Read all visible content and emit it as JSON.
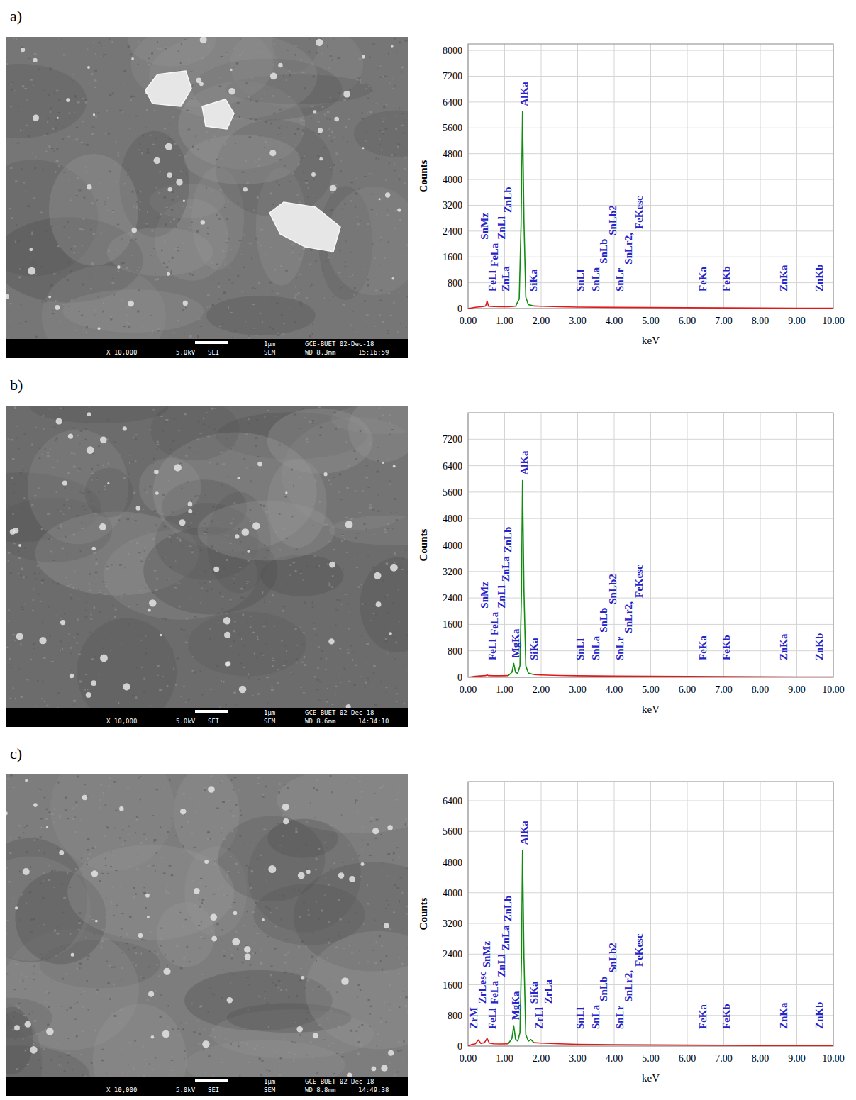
{
  "panels": [
    {
      "label": "a)",
      "sem": {
        "scale": "1μm",
        "lab_date": "GCE-BUET 02-Dec-18",
        "magnification": "X 10,000",
        "voltage": "5.0kV",
        "signal": "SEI",
        "instrument": "SEM",
        "working_distance": "WD 8.3mm",
        "time": "15:16:59"
      }
    },
    {
      "label": "b)",
      "sem": {
        "scale": "1μm",
        "lab_date": "GCE-BUET 02-Dec-18",
        "magnification": "X 10,000",
        "voltage": "5.0kV",
        "signal": "SEI",
        "instrument": "SEM",
        "working_distance": "WD 8.6mm",
        "time": "14:34:10"
      }
    },
    {
      "label": "c)",
      "sem": {
        "scale": "1μm",
        "lab_date": "GCE-BUET 02-Dec-18",
        "magnification": "X 10,000",
        "voltage": "5.0kV",
        "signal": "SEI",
        "instrument": "SEM",
        "working_distance": "WD 8.8mm",
        "time": "14:49:38"
      }
    }
  ],
  "chart_data": [
    {
      "type": "line",
      "x_label": "keV",
      "y_label": "Counts",
      "xlim": [
        0,
        10
      ],
      "ylim": [
        0,
        8200
      ],
      "xticks": [
        {
          "value": 0,
          "label": "0.00"
        },
        {
          "value": 1,
          "label": "1.00"
        },
        {
          "value": 2,
          "label": "2.00"
        },
        {
          "value": 3,
          "label": "3.00"
        },
        {
          "value": 4,
          "label": "4.00"
        },
        {
          "value": 5,
          "label": "5.00"
        },
        {
          "value": 6,
          "label": "6.00"
        },
        {
          "value": 7,
          "label": "7.00"
        },
        {
          "value": 8,
          "label": "8.00"
        },
        {
          "value": 9,
          "label": "9.00"
        },
        {
          "value": 10,
          "label": "10.00"
        }
      ],
      "yticks": [
        0,
        800,
        1600,
        2400,
        3200,
        4000,
        4800,
        5600,
        6400,
        7200,
        8000
      ],
      "grid": true,
      "series": [
        {
          "color": "#e01818",
          "x": [
            0,
            0.2,
            0.4,
            0.48,
            0.52,
            0.56,
            0.7,
            0.9,
            1.1,
            1.3,
            1.5,
            1.8,
            2.0,
            2.5,
            3,
            4,
            5,
            6,
            7,
            8,
            9,
            10
          ],
          "values": [
            0,
            40,
            60,
            80,
            230,
            70,
            60,
            55,
            55,
            70,
            null,
            80,
            70,
            55,
            45,
            35,
            30,
            25,
            20,
            15,
            10,
            8
          ]
        },
        {
          "color": "#118c11",
          "x": [
            1.3,
            1.4,
            1.45,
            1.49,
            1.53,
            1.58,
            1.65,
            1.8
          ],
          "values": [
            70,
            300,
            2600,
            6100,
            2700,
            350,
            120,
            80
          ]
        }
      ],
      "annotations": [
        {
          "text": "FeLl",
          "x": 0.66
        },
        {
          "text": "FeLa",
          "x": 0.72
        },
        {
          "text": "ZnLl",
          "x": 0.92
        },
        {
          "text": "SnMz",
          "x": 0.45
        },
        {
          "text": "ZnLa",
          "x": 1.03
        },
        {
          "text": "ZnLb",
          "x": 1.09
        },
        {
          "text": "AlKa",
          "x": 1.54
        },
        {
          "text": "SiKa",
          "x": 1.78
        },
        {
          "text": "SnLl",
          "x": 3.07
        },
        {
          "text": "SnLa",
          "x": 3.5
        },
        {
          "text": "SnLb",
          "x": 3.71
        },
        {
          "text": "SnLr",
          "x": 4.16
        },
        {
          "text": "SnLb2",
          "x": 3.96
        },
        {
          "text": "SnLr2,",
          "x": 4.39
        },
        {
          "text": "FeKesc",
          "x": 4.67
        },
        {
          "text": "FeKa",
          "x": 6.43
        },
        {
          "text": "FeKb",
          "x": 7.07
        },
        {
          "text": "ZnKa",
          "x": 8.65
        },
        {
          "text": "ZnKb",
          "x": 9.61
        }
      ]
    },
    {
      "type": "line",
      "x_label": "keV",
      "y_label": "Counts",
      "xlim": [
        0,
        10
      ],
      "ylim": [
        0,
        8000
      ],
      "xticks": [
        {
          "value": 0,
          "label": "0.00"
        },
        {
          "value": 1,
          "label": "1.00"
        },
        {
          "value": 2,
          "label": "2.00"
        },
        {
          "value": 3,
          "label": "3.00"
        },
        {
          "value": 4,
          "label": "4.00"
        },
        {
          "value": 5,
          "label": "5.00"
        },
        {
          "value": 6,
          "label": "6.00"
        },
        {
          "value": 7,
          "label": "7.00"
        },
        {
          "value": 8,
          "label": "8.00"
        },
        {
          "value": 9,
          "label": "9.00"
        },
        {
          "value": 10,
          "label": "10.00"
        }
      ],
      "yticks": [
        0,
        800,
        1600,
        2400,
        3200,
        4000,
        4800,
        5600,
        6400,
        7200
      ],
      "grid": true,
      "series": [
        {
          "color": "#e01818",
          "x": [
            0,
            0.2,
            0.4,
            0.48,
            0.52,
            0.56,
            0.7,
            0.9,
            1.1,
            1.5,
            1.8,
            2.0,
            2.5,
            3,
            4,
            5,
            6,
            7,
            8,
            9,
            10
          ],
          "values": [
            0,
            30,
            45,
            50,
            70,
            50,
            45,
            45,
            50,
            null,
            80,
            70,
            55,
            45,
            35,
            30,
            25,
            20,
            15,
            10,
            8
          ]
        },
        {
          "color": "#118c11",
          "x": [
            1.1,
            1.2,
            1.25,
            1.3,
            1.36,
            1.42,
            1.46,
            1.49,
            1.53,
            1.58,
            1.65,
            1.8
          ],
          "values": [
            50,
            150,
            420,
            150,
            120,
            350,
            2500,
            5950,
            2600,
            350,
            130,
            80
          ]
        }
      ],
      "annotations": [
        {
          "text": "FeLl",
          "x": 0.66
        },
        {
          "text": "FeLa",
          "x": 0.72
        },
        {
          "text": "MgKa",
          "x": 1.31
        },
        {
          "text": "ZnLl",
          "x": 0.92
        },
        {
          "text": "SnMz",
          "x": 0.45
        },
        {
          "text": "ZnLa",
          "x": 1.03
        },
        {
          "text": "ZnLb",
          "x": 1.09
        },
        {
          "text": "AlKa",
          "x": 1.54
        },
        {
          "text": "SiKa",
          "x": 1.8
        },
        {
          "text": "SnLl",
          "x": 3.07
        },
        {
          "text": "SnLa",
          "x": 3.5
        },
        {
          "text": "SnLb",
          "x": 3.71
        },
        {
          "text": "SnLr",
          "x": 4.16
        },
        {
          "text": "SnLb2",
          "x": 3.96
        },
        {
          "text": "SnLr2,",
          "x": 4.39
        },
        {
          "text": "FeKesc",
          "x": 4.67
        },
        {
          "text": "FeKa",
          "x": 6.43
        },
        {
          "text": "FeKb",
          "x": 7.07
        },
        {
          "text": "ZnKa",
          "x": 8.65
        },
        {
          "text": "ZnKb",
          "x": 9.61
        }
      ]
    },
    {
      "type": "line",
      "x_label": "keV",
      "y_label": "Counts",
      "xlim": [
        0,
        10
      ],
      "ylim": [
        0,
        6900
      ],
      "xticks": [
        {
          "value": 0,
          "label": "0.00"
        },
        {
          "value": 1,
          "label": "1.00"
        },
        {
          "value": 2,
          "label": "2.00"
        },
        {
          "value": 3,
          "label": "3.00"
        },
        {
          "value": 4,
          "label": "4.00"
        },
        {
          "value": 5,
          "label": "5.00"
        },
        {
          "value": 6,
          "label": "6.00"
        },
        {
          "value": 7,
          "label": "7.00"
        },
        {
          "value": 8,
          "label": "8.00"
        },
        {
          "value": 9,
          "label": "9.00"
        },
        {
          "value": 10,
          "label": "10.00"
        }
      ],
      "yticks": [
        0,
        800,
        1600,
        2400,
        3200,
        4000,
        4800,
        5600,
        6400
      ],
      "grid": true,
      "series": [
        {
          "color": "#e01818",
          "x": [
            0,
            0.1,
            0.2,
            0.28,
            0.35,
            0.45,
            0.52,
            0.58,
            0.7,
            0.9,
            1.1,
            1.5,
            1.8,
            2.0,
            2.5,
            3,
            4,
            5,
            6,
            7,
            8,
            9,
            10
          ],
          "values": [
            0,
            40,
            60,
            160,
            70,
            90,
            200,
            80,
            60,
            55,
            60,
            null,
            90,
            80,
            60,
            45,
            35,
            30,
            25,
            20,
            15,
            10,
            8
          ]
        },
        {
          "color": "#118c11",
          "x": [
            1.1,
            1.2,
            1.25,
            1.3,
            1.36,
            1.42,
            1.46,
            1.49,
            1.53,
            1.58,
            1.65,
            1.72,
            1.76,
            1.8
          ],
          "values": [
            60,
            200,
            530,
            180,
            130,
            350,
            2200,
            5100,
            2300,
            300,
            130,
            170,
            130,
            90
          ]
        }
      ],
      "annotations": [
        {
          "text": "ZrM",
          "x": 0.16
        },
        {
          "text": "FeLl",
          "x": 0.66
        },
        {
          "text": "ZrLesc",
          "x": 0.39
        },
        {
          "text": "SnMz",
          "x": 0.5
        },
        {
          "text": "FeLa",
          "x": 0.72
        },
        {
          "text": "MgKa",
          "x": 1.31
        },
        {
          "text": "ZnLl",
          "x": 0.92
        },
        {
          "text": "ZnLa",
          "x": 1.03
        },
        {
          "text": "ZnLb",
          "x": 1.09
        },
        {
          "text": "AlKa",
          "x": 1.54
        },
        {
          "text": "ZrLl",
          "x": 1.95
        },
        {
          "text": "SiKa",
          "x": 1.8
        },
        {
          "text": "ZrLa",
          "x": 2.2
        },
        {
          "text": "SnLl",
          "x": 3.07
        },
        {
          "text": "SnLa",
          "x": 3.5
        },
        {
          "text": "SnLb",
          "x": 3.71
        },
        {
          "text": "SnLr",
          "x": 4.16
        },
        {
          "text": "SnLb2",
          "x": 3.96
        },
        {
          "text": "SnLr2,",
          "x": 4.39
        },
        {
          "text": "FeKesc",
          "x": 4.67
        },
        {
          "text": "FeKa",
          "x": 6.43
        },
        {
          "text": "FeKb",
          "x": 7.07
        },
        {
          "text": "ZnKa",
          "x": 8.65
        },
        {
          "text": "ZnKb",
          "x": 9.61
        }
      ]
    }
  ]
}
